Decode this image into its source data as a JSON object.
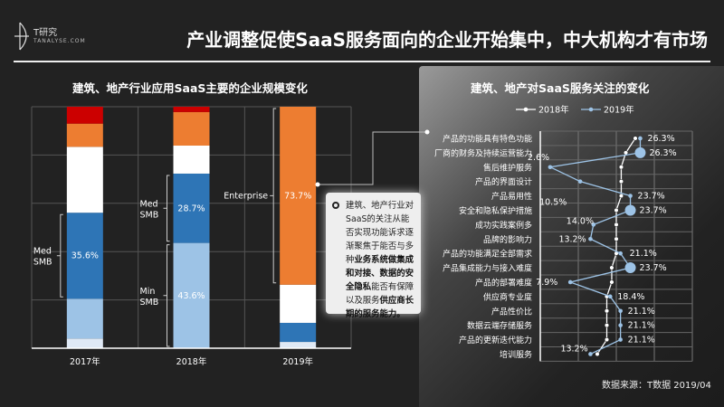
{
  "header": {
    "logo_text": "T研究",
    "logo_sub": "TANALYSE.COM",
    "title": "产业调整促使SaaS服务面向的企业开始集中，中大机构才有市场"
  },
  "chart_data": [
    {
      "type": "bar",
      "stacked": true,
      "title": "建筑、地产行业应用SaaS主要的企业规模变化",
      "categories": [
        "2017年",
        "2018年",
        "2019年"
      ],
      "ylim": [
        0,
        100
      ],
      "grid": true,
      "series": [
        {
          "color": "#dfe9f5",
          "values": [
            4.0,
            0,
            2.6
          ]
        },
        {
          "color": "#9dc3e6",
          "values": [
            16.5,
            43.6,
            0
          ]
        },
        {
          "color": "#2e75b6",
          "values": [
            35.6,
            28.7,
            7.9
          ]
        },
        {
          "color": "#ffffff",
          "values": [
            27.3,
            11.6,
            15.8
          ]
        },
        {
          "color": "#ed7d31",
          "values": [
            9.6,
            13.9,
            73.7
          ]
        },
        {
          "color": "#cc0000",
          "values": [
            7.0,
            2.2,
            0
          ]
        }
      ],
      "data_labels": [
        {
          "year": "2017年",
          "text": "35.6%"
        },
        {
          "year": "2018年",
          "text": "28.7%"
        },
        {
          "year": "2018年",
          "text": "43.6%"
        },
        {
          "year": "2019年",
          "text": "73.7%"
        }
      ],
      "annotations": [
        {
          "text": "Med SMB",
          "year": "2017年"
        },
        {
          "text": "Med SMB",
          "year": "2018年"
        },
        {
          "text": "Min SMB",
          "year": "2018年"
        },
        {
          "text": "Enterprise",
          "year": "2019年"
        }
      ]
    },
    {
      "type": "line",
      "title": "建筑、地产对SaaS服务关注的变化",
      "orientation": "horizontal",
      "xlim": [
        0,
        40
      ],
      "grid": true,
      "legend": "top",
      "categories": [
        "产品的功能具有特色功能",
        "厂商的财务及持续运营能力",
        "售后维护服务",
        "产品的界面设计",
        "产品易用性",
        "安全和隐私保护措施",
        "成功实践案例多",
        "品牌的影响力",
        "产品的功能满足全部需求",
        "产品集成能力与接入难度",
        "产品的部署难度",
        "供应商专业度",
        "产品性价比",
        "数据云端存储服务",
        "产品的更新迭代能力",
        "培训服务"
      ],
      "series": [
        {
          "name": "2018年",
          "color": "#ffffff",
          "values": [
            25.0,
            22.5,
            21.3,
            21.3,
            21.3,
            20.0,
            20.0,
            20.0,
            20.0,
            18.8,
            18.8,
            17.5,
            17.5,
            17.5,
            17.5,
            15.0
          ]
        },
        {
          "name": "2019年",
          "color": "#9dc3e6",
          "values": [
            26.3,
            26.3,
            2.6,
            10.5,
            23.7,
            23.7,
            14.0,
            13.2,
            21.1,
            23.7,
            7.9,
            18.4,
            21.1,
            21.1,
            21.1,
            13.2
          ],
          "labels": [
            "26.3%",
            "26.3%",
            "2.6%",
            "10.5%",
            "23.7%",
            "23.7%",
            "14.0%",
            "13.2%",
            "21.1%",
            "23.7%",
            "7.9%",
            "18.4%",
            "21.1%",
            "21.1%",
            "21.1%",
            "13.2%"
          ],
          "highlighted": [
            1,
            5,
            9
          ]
        }
      ]
    }
  ],
  "callout": {
    "p1": "建筑、地产行业对SaaS的关注从能否实现功能诉求逐渐聚焦于能否与多种",
    "b1": "业务系统做集成和对接、数据的安全隐私",
    "p2": "能否有保障以及服务",
    "b2": "供应商长期的服务能力。"
  },
  "source": "数据来源：T数据 2019/04"
}
